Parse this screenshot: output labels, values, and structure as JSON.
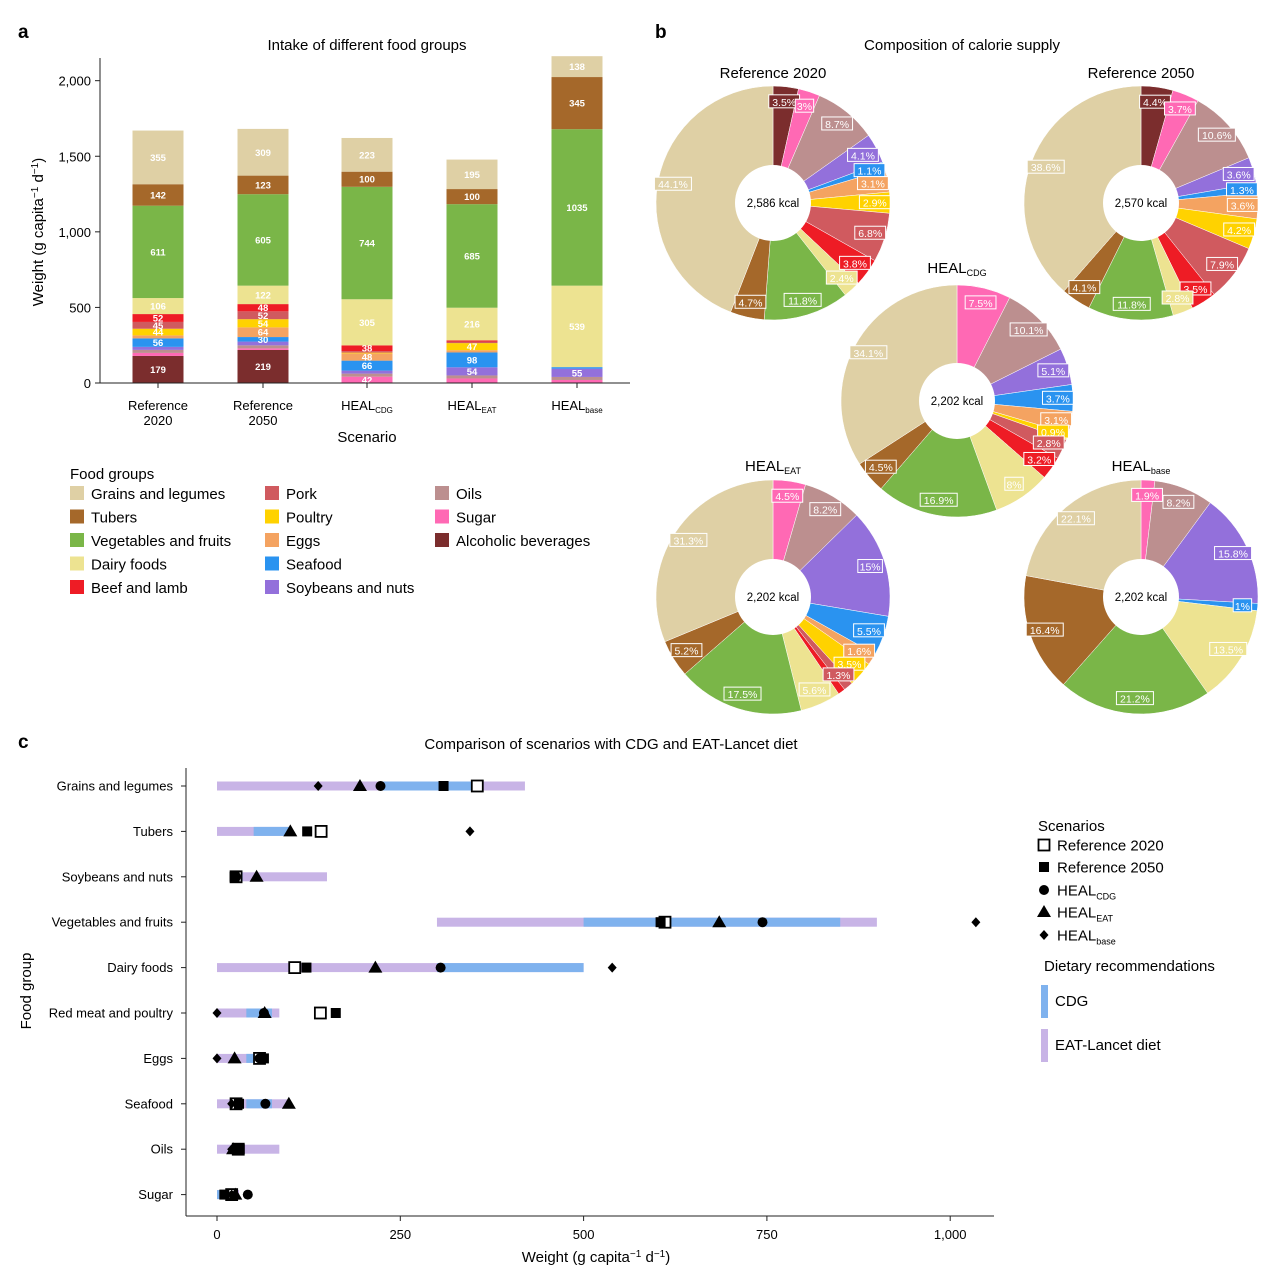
{
  "panels": {
    "a": {
      "letter": "a",
      "title": "Intake of different food groups",
      "ylabel_parts": [
        "Weight (g capita",
        "−1",
        " d",
        "−1",
        ")"
      ],
      "xlabel": "Scenario",
      "yticks": [
        "0",
        "500",
        "1,000",
        "1,500",
        "2,000"
      ],
      "legend_title": "Food groups"
    },
    "b": {
      "letter": "b",
      "title": "Composition of calorie supply"
    },
    "c": {
      "letter": "c",
      "title": "Comparison of scenarios with CDG and EAT-Lancet diet",
      "ylabel": "Food group",
      "xlabel_parts": [
        "Weight (g capita",
        "−1",
        " d",
        "−1",
        ")"
      ],
      "xticks": [
        "0",
        "250",
        "500",
        "750",
        "1,000"
      ],
      "legend_scen_title": "Scenarios",
      "legend_rec_title": "Dietary recommendations",
      "legend_rec": [
        "CDG",
        "EAT-Lancet diet"
      ]
    }
  },
  "colors": {
    "Grains and legumes": "#dfd0a5",
    "Tubers": "#a5682a",
    "Vegetables and fruits": "#7ab648",
    "Dairy foods": "#ede391",
    "Beef and lamb": "#ee1c25",
    "Pork": "#d05a5f",
    "Poultry": "#ffd200",
    "Eggs": "#f4a361",
    "Seafood": "#2a93f0",
    "Soybeans and nuts": "#9370db",
    "Oils": "#bc8f8f",
    "Sugar": "#ff69b4",
    "Alcoholic beverages": "#7b2d2d",
    "cdg_band": "#7fb2ee",
    "eat_band": "#c8b4e6"
  },
  "food_groups_legend": [
    "Grains and legumes",
    "Tubers",
    "Vegetables and fruits",
    "Dairy foods",
    "Beef and lamb",
    "Pork",
    "Poultry",
    "Eggs",
    "Seafood",
    "Soybeans and nuts",
    "Oils",
    "Sugar",
    "Alcoholic beverages"
  ],
  "chart_data": [
    {
      "type": "bar",
      "stacked": true,
      "title": "Intake of different food groups",
      "xlabel": "Scenario",
      "ylabel": "Weight (g capita−1 d−1)",
      "ylim": [
        0,
        2150
      ],
      "categories": [
        {
          "main": "Reference",
          "line2": "2020",
          "sub": ""
        },
        {
          "main": "Reference",
          "line2": "2050",
          "sub": ""
        },
        {
          "main": "HEAL",
          "line2": "",
          "sub": "CDG"
        },
        {
          "main": "HEAL",
          "line2": "",
          "sub": "EAT"
        },
        {
          "main": "HEAL",
          "line2": "",
          "sub": "base"
        }
      ],
      "series": [
        {
          "name": "Alcoholic beverages",
          "values": [
            179,
            219,
            0,
            0,
            0
          ],
          "labels": [
            "179",
            "219",
            "",
            "",
            ""
          ]
        },
        {
          "name": "Sugar",
          "values": [
            20,
            10,
            42,
            30,
            20
          ],
          "labels": [
            "",
            "",
            "42",
            "",
            ""
          ]
        },
        {
          "name": "Oils",
          "values": [
            20,
            20,
            20,
            20,
            20
          ],
          "labels": [
            "",
            "",
            "",
            "",
            ""
          ]
        },
        {
          "name": "Soybeans and nuts",
          "values": [
            20,
            25,
            20,
            54,
            55
          ],
          "labels": [
            "",
            "",
            "",
            "54",
            "55"
          ]
        },
        {
          "name": "Seafood",
          "values": [
            56,
            30,
            66,
            98,
            10
          ],
          "labels": [
            "56",
            "30",
            "66",
            "98",
            ""
          ]
        },
        {
          "name": "Eggs",
          "values": [
            20,
            64,
            48,
            15,
            0
          ],
          "labels": [
            "",
            "64",
            "48",
            "",
            ""
          ]
        },
        {
          "name": "Poultry",
          "values": [
            44,
            54,
            5,
            47,
            0
          ],
          "labels": [
            "44",
            "54",
            "",
            "47",
            ""
          ]
        },
        {
          "name": "Pork",
          "values": [
            45,
            52,
            10,
            10,
            0
          ],
          "labels": [
            "45",
            "52",
            "",
            "",
            ""
          ]
        },
        {
          "name": "Beef and lamb",
          "values": [
            52,
            48,
            38,
            8,
            0
          ],
          "labels": [
            "52",
            "48",
            "38",
            "",
            ""
          ]
        },
        {
          "name": "Dairy foods",
          "values": [
            106,
            122,
            305,
            216,
            539
          ],
          "labels": [
            "106",
            "122",
            "305",
            "216",
            "539"
          ]
        },
        {
          "name": "Vegetables and fruits",
          "values": [
            611,
            605,
            744,
            685,
            1035
          ],
          "labels": [
            "611",
            "605",
            "744",
            "685",
            "1035"
          ]
        },
        {
          "name": "Tubers",
          "values": [
            142,
            123,
            100,
            100,
            345
          ],
          "labels": [
            "142",
            "123",
            "100",
            "100",
            "345"
          ]
        },
        {
          "name": "Grains and legumes",
          "values": [
            355,
            309,
            223,
            195,
            138
          ],
          "labels": [
            "355",
            "309",
            "223",
            "195",
            "138"
          ]
        }
      ]
    },
    {
      "type": "pie",
      "title": "Composition of calorie supply",
      "pies": [
        {
          "title": "Reference 2020",
          "sub": "",
          "center": "2,586 kcal",
          "slices": [
            {
              "name": "Alcoholic beverages",
              "value": 3.5,
              "label": "3.5%"
            },
            {
              "name": "Sugar",
              "value": 3.0,
              "label": "3%"
            },
            {
              "name": "Oils",
              "value": 8.7,
              "label": "8.7%"
            },
            {
              "name": "Soybeans and nuts",
              "value": 4.1,
              "label": "4.1%"
            },
            {
              "name": "Seafood",
              "value": 1.1,
              "label": "1.1%"
            },
            {
              "name": "Eggs",
              "value": 3.1,
              "label": "3.1%"
            },
            {
              "name": "Poultry",
              "value": 2.9,
              "label": "2.9%"
            },
            {
              "name": "Pork",
              "value": 6.8,
              "label": "6.8%"
            },
            {
              "name": "Beef and lamb",
              "value": 3.8,
              "label": "3.8%"
            },
            {
              "name": "Dairy foods",
              "value": 2.4,
              "label": "2.4%"
            },
            {
              "name": "Vegetables and fruits",
              "value": 11.8,
              "label": "11.8%"
            },
            {
              "name": "Tubers",
              "value": 4.7,
              "label": "4.7%"
            },
            {
              "name": "Grains and legumes",
              "value": 44.1,
              "label": "44.1%"
            }
          ]
        },
        {
          "title": "Reference 2050",
          "sub": "",
          "center": "2,570 kcal",
          "slices": [
            {
              "name": "Alcoholic beverages",
              "value": 4.4,
              "label": "4.4%"
            },
            {
              "name": "Sugar",
              "value": 3.7,
              "label": "3.7%"
            },
            {
              "name": "Oils",
              "value": 10.6,
              "label": "10.6%"
            },
            {
              "name": "Soybeans and nuts",
              "value": 3.6,
              "label": "3.6%"
            },
            {
              "name": "Seafood",
              "value": 1.3,
              "label": "1.3%"
            },
            {
              "name": "Eggs",
              "value": 3.6,
              "label": "3.6%"
            },
            {
              "name": "Poultry",
              "value": 4.2,
              "label": "4.2%"
            },
            {
              "name": "Pork",
              "value": 7.9,
              "label": "7.9%"
            },
            {
              "name": "Beef and lamb",
              "value": 3.5,
              "label": "3.5%"
            },
            {
              "name": "Dairy foods",
              "value": 2.8,
              "label": "2.8%"
            },
            {
              "name": "Vegetables and fruits",
              "value": 11.8,
              "label": "11.8%"
            },
            {
              "name": "Tubers",
              "value": 4.1,
              "label": "4.1%"
            },
            {
              "name": "Grains and legumes",
              "value": 38.6,
              "label": "38.6%"
            }
          ]
        },
        {
          "title": "HEAL",
          "sub": "CDG",
          "center": "2,202 kcal",
          "slices": [
            {
              "name": "Sugar",
              "value": 7.5,
              "label": "7.5%"
            },
            {
              "name": "Oils",
              "value": 10.1,
              "label": "10.1%"
            },
            {
              "name": "Soybeans and nuts",
              "value": 5.1,
              "label": "5.1%"
            },
            {
              "name": "Seafood",
              "value": 3.7,
              "label": "3.7%"
            },
            {
              "name": "Eggs",
              "value": 3.1,
              "label": "3.1%"
            },
            {
              "name": "Poultry",
              "value": 0.9,
              "label": "0.9%"
            },
            {
              "name": "Pork",
              "value": 2.8,
              "label": "2.8%"
            },
            {
              "name": "Beef and lamb",
              "value": 3.2,
              "label": "3.2%"
            },
            {
              "name": "Dairy foods",
              "value": 8.0,
              "label": "8%"
            },
            {
              "name": "Vegetables and fruits",
              "value": 16.9,
              "label": "16.9%"
            },
            {
              "name": "Tubers",
              "value": 4.5,
              "label": "4.5%"
            },
            {
              "name": "Grains and legumes",
              "value": 34.1,
              "label": "34.1%"
            }
          ]
        },
        {
          "title": "HEAL",
          "sub": "EAT",
          "center": "2,202 kcal",
          "slices": [
            {
              "name": "Sugar",
              "value": 4.5,
              "label": "4.5%"
            },
            {
              "name": "Oils",
              "value": 8.2,
              "label": "8.2%"
            },
            {
              "name": "Soybeans and nuts",
              "value": 15.0,
              "label": "15%"
            },
            {
              "name": "Seafood",
              "value": 5.5,
              "label": "5.5%"
            },
            {
              "name": "Eggs",
              "value": 1.6,
              "label": "1.6%"
            },
            {
              "name": "Poultry",
              "value": 3.5,
              "label": "3.5%"
            },
            {
              "name": "Pork",
              "value": 1.3,
              "label": "1.3%"
            },
            {
              "name": "Beef and lamb",
              "value": 1.0,
              "label": ""
            },
            {
              "name": "Dairy foods",
              "value": 5.6,
              "label": "5.6%"
            },
            {
              "name": "Vegetables and fruits",
              "value": 17.5,
              "label": "17.5%"
            },
            {
              "name": "Tubers",
              "value": 5.2,
              "label": "5.2%"
            },
            {
              "name": "Grains and legumes",
              "value": 31.3,
              "label": "31.3%"
            }
          ]
        },
        {
          "title": "HEAL",
          "sub": "base",
          "center": "2,202 kcal",
          "slices": [
            {
              "name": "Sugar",
              "value": 1.9,
              "label": "1.9%"
            },
            {
              "name": "Oils",
              "value": 8.2,
              "label": "8.2%"
            },
            {
              "name": "Soybeans and nuts",
              "value": 15.8,
              "label": "15.8%"
            },
            {
              "name": "Seafood",
              "value": 1.0,
              "label": "1%"
            },
            {
              "name": "Dairy foods",
              "value": 13.5,
              "label": "13.5%"
            },
            {
              "name": "Vegetables and fruits",
              "value": 21.2,
              "label": "21.2%"
            },
            {
              "name": "Tubers",
              "value": 16.4,
              "label": "16.4%"
            },
            {
              "name": "Grains and legumes",
              "value": 22.1,
              "label": "22.1%"
            }
          ]
        }
      ]
    },
    {
      "type": "scatter",
      "title": "Comparison of scenarios with CDG and EAT-Lancet diet",
      "xlabel": "Weight (g capita−1 d−1)",
      "ylabel": "Food group",
      "xlim": [
        -40,
        1060
      ],
      "xticks": [
        0,
        250,
        500,
        750,
        1000
      ],
      "groups": [
        "Grains and legumes",
        "Tubers",
        "Soybeans and nuts",
        "Vegetables and fruits",
        "Dairy foods",
        "Red meat and poultry",
        "Eggs",
        "Seafood",
        "Oils",
        "Sugar"
      ],
      "eat_ranges": [
        [
          0,
          420
        ],
        [
          0,
          100
        ],
        [
          25,
          150
        ],
        [
          300,
          900
        ],
        [
          0,
          500
        ],
        [
          0,
          85
        ],
        [
          0,
          60
        ],
        [
          0,
          100
        ],
        [
          0,
          85
        ],
        [
          0,
          30
        ]
      ],
      "cdg_ranges": [
        [
          225,
          350
        ],
        [
          50,
          100
        ],
        [
          25,
          35
        ],
        [
          500,
          850
        ],
        [
          300,
          500
        ],
        [
          40,
          75
        ],
        [
          40,
          50
        ],
        [
          40,
          75
        ],
        [
          25,
          30
        ],
        [
          0,
          25
        ]
      ],
      "series": [
        {
          "name": "Reference 2020",
          "sub": "",
          "marker": "open-square",
          "values": [
            355,
            142,
            26,
            611,
            106,
            141,
            58,
            26,
            29,
            20
          ]
        },
        {
          "name": "Reference 2050",
          "sub": "",
          "marker": "square",
          "values": [
            309,
            123,
            24,
            605,
            122,
            162,
            64,
            30,
            31,
            10
          ]
        },
        {
          "name": "HEAL",
          "sub": "CDG",
          "marker": "circle",
          "values": [
            223,
            null,
            26,
            744,
            305,
            64,
            58,
            66,
            24,
            42
          ]
        },
        {
          "name": "HEAL",
          "sub": "EAT",
          "marker": "triangle",
          "values": [
            195,
            100,
            54,
            685,
            216,
            65,
            24,
            98,
            22,
            25
          ]
        },
        {
          "name": "HEAL",
          "sub": "base",
          "marker": "diamond",
          "values": [
            138,
            345,
            null,
            1035,
            539,
            0,
            0,
            20,
            20,
            20
          ]
        }
      ]
    }
  ]
}
